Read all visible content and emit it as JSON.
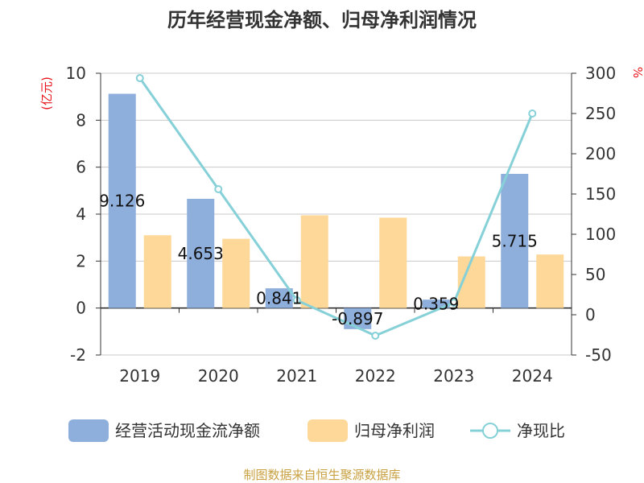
{
  "chart_data": {
    "type": "bar",
    "title": "历年经营现金净额、归母净利润情况",
    "categories": [
      "2019",
      "2020",
      "2021",
      "2022",
      "2023",
      "2024"
    ],
    "left_axis": {
      "unit": "(亿元)",
      "ylim": [
        -2,
        10
      ],
      "ticks": [
        "-2",
        "0",
        "2",
        "4",
        "6",
        "8",
        "10"
      ]
    },
    "right_axis": {
      "unit": "%",
      "ylim": [
        -50,
        300
      ],
      "ticks": [
        "-50",
        "0",
        "50",
        "100",
        "150",
        "200",
        "250",
        "300"
      ]
    },
    "series": [
      {
        "name": "经营活动现金流净额",
        "type": "bar",
        "axis": "left",
        "color": "#8eaedb",
        "values": [
          9.126,
          4.653,
          0.841,
          -0.897,
          0.359,
          5.715
        ],
        "labels": [
          "9.126",
          "4.653",
          "0.841",
          "-0.897",
          "0.359",
          "5.715"
        ]
      },
      {
        "name": "归母净利润",
        "type": "bar",
        "axis": "left",
        "color": "#fdd898",
        "values": [
          3.1,
          2.95,
          3.95,
          3.85,
          2.2,
          2.28
        ]
      },
      {
        "name": "净现比",
        "type": "line",
        "axis": "right",
        "color": "#86d0d8",
        "values": [
          294,
          156,
          18,
          -26,
          15,
          250
        ]
      }
    ],
    "legend_position": "bottom",
    "grid": true
  },
  "footer": {
    "source": "制图数据来自恒生聚源数据库"
  }
}
